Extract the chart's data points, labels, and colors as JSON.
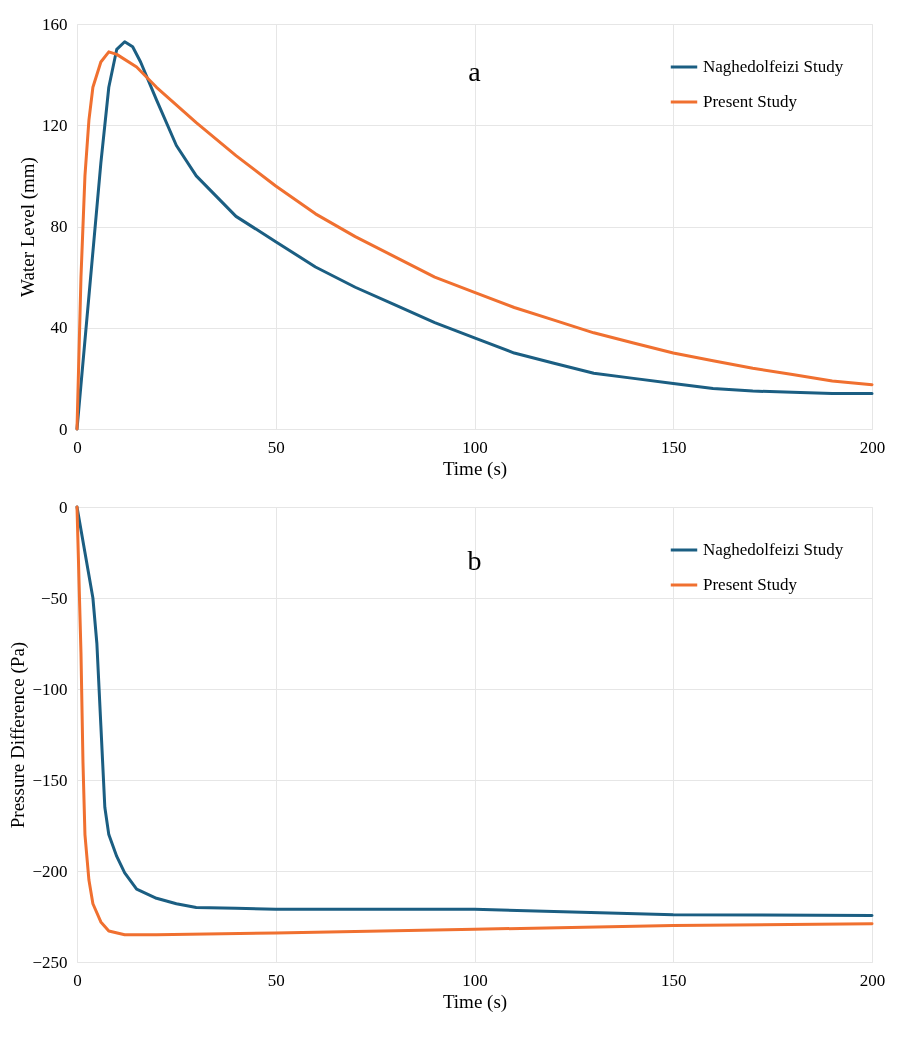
{
  "chart_data": [
    {
      "type": "line",
      "xlabel": "Time (s)",
      "ylabel": "Water Level (mm)",
      "annotations": [
        "a"
      ],
      "xlim": [
        0,
        200
      ],
      "xticks": [
        0,
        50,
        100,
        150,
        200
      ],
      "ylim": [
        0,
        160
      ],
      "yticks": [
        0,
        40,
        80,
        120,
        160
      ],
      "grid": true,
      "legend": "top right",
      "series": [
        {
          "name": "Naghedolfeizi Study",
          "color": "#1b5e82",
          "x": [
            0,
            2,
            4,
            6,
            8,
            10,
            12,
            14,
            16,
            20,
            25,
            30,
            40,
            50,
            60,
            70,
            80,
            90,
            100,
            110,
            120,
            130,
            140,
            150,
            160,
            170,
            180,
            190,
            200
          ],
          "values": [
            0,
            35,
            70,
            105,
            135,
            150,
            153,
            151,
            145,
            130,
            112,
            100,
            84,
            74,
            64,
            56,
            49,
            42,
            36,
            30,
            26,
            22,
            20,
            18,
            16,
            15,
            14.5,
            14,
            14
          ]
        },
        {
          "name": "Present Study",
          "color": "#f07030",
          "x": [
            0,
            1,
            2,
            3,
            4,
            6,
            8,
            10,
            15,
            20,
            30,
            40,
            50,
            60,
            70,
            80,
            90,
            100,
            110,
            120,
            130,
            140,
            150,
            160,
            170,
            180,
            190,
            200
          ],
          "values": [
            0,
            60,
            100,
            122,
            135,
            145,
            149,
            148,
            143,
            135,
            121,
            108,
            96,
            85,
            76,
            68,
            60,
            54,
            48,
            43,
            38,
            34,
            30,
            27,
            24,
            21.5,
            19,
            17.5
          ]
        }
      ]
    },
    {
      "type": "line",
      "xlabel": "Time (s)",
      "ylabel": "Pressure Difference (Pa)",
      "annotations": [
        "b"
      ],
      "xlim": [
        0,
        200
      ],
      "xticks": [
        0,
        50,
        100,
        150,
        200
      ],
      "ylim": [
        -250,
        0
      ],
      "yticks": [
        -250,
        -200,
        -150,
        -100,
        -50,
        0
      ],
      "grid": true,
      "legend": "top right",
      "series": [
        {
          "name": "Naghedolfeizi Study",
          "color": "#1b5e82",
          "x": [
            0,
            2,
            4,
            5,
            6,
            7,
            8,
            10,
            12,
            15,
            20,
            25,
            30,
            40,
            50,
            100,
            150,
            200
          ],
          "values": [
            0,
            -25,
            -50,
            -75,
            -120,
            -165,
            -180,
            -192,
            -201,
            -210,
            -215,
            -218,
            -220,
            -220.5,
            -221,
            -221,
            -224,
            -224.5
          ]
        },
        {
          "name": "Present Study",
          "color": "#f07030",
          "x": [
            0,
            1,
            1.5,
            2,
            3,
            4,
            6,
            8,
            12,
            20,
            50,
            100,
            150,
            200
          ],
          "values": [
            0,
            -80,
            -140,
            -180,
            -205,
            -218,
            -228,
            -233,
            -235,
            -235,
            -234,
            -232,
            -230,
            -229
          ]
        }
      ]
    }
  ]
}
